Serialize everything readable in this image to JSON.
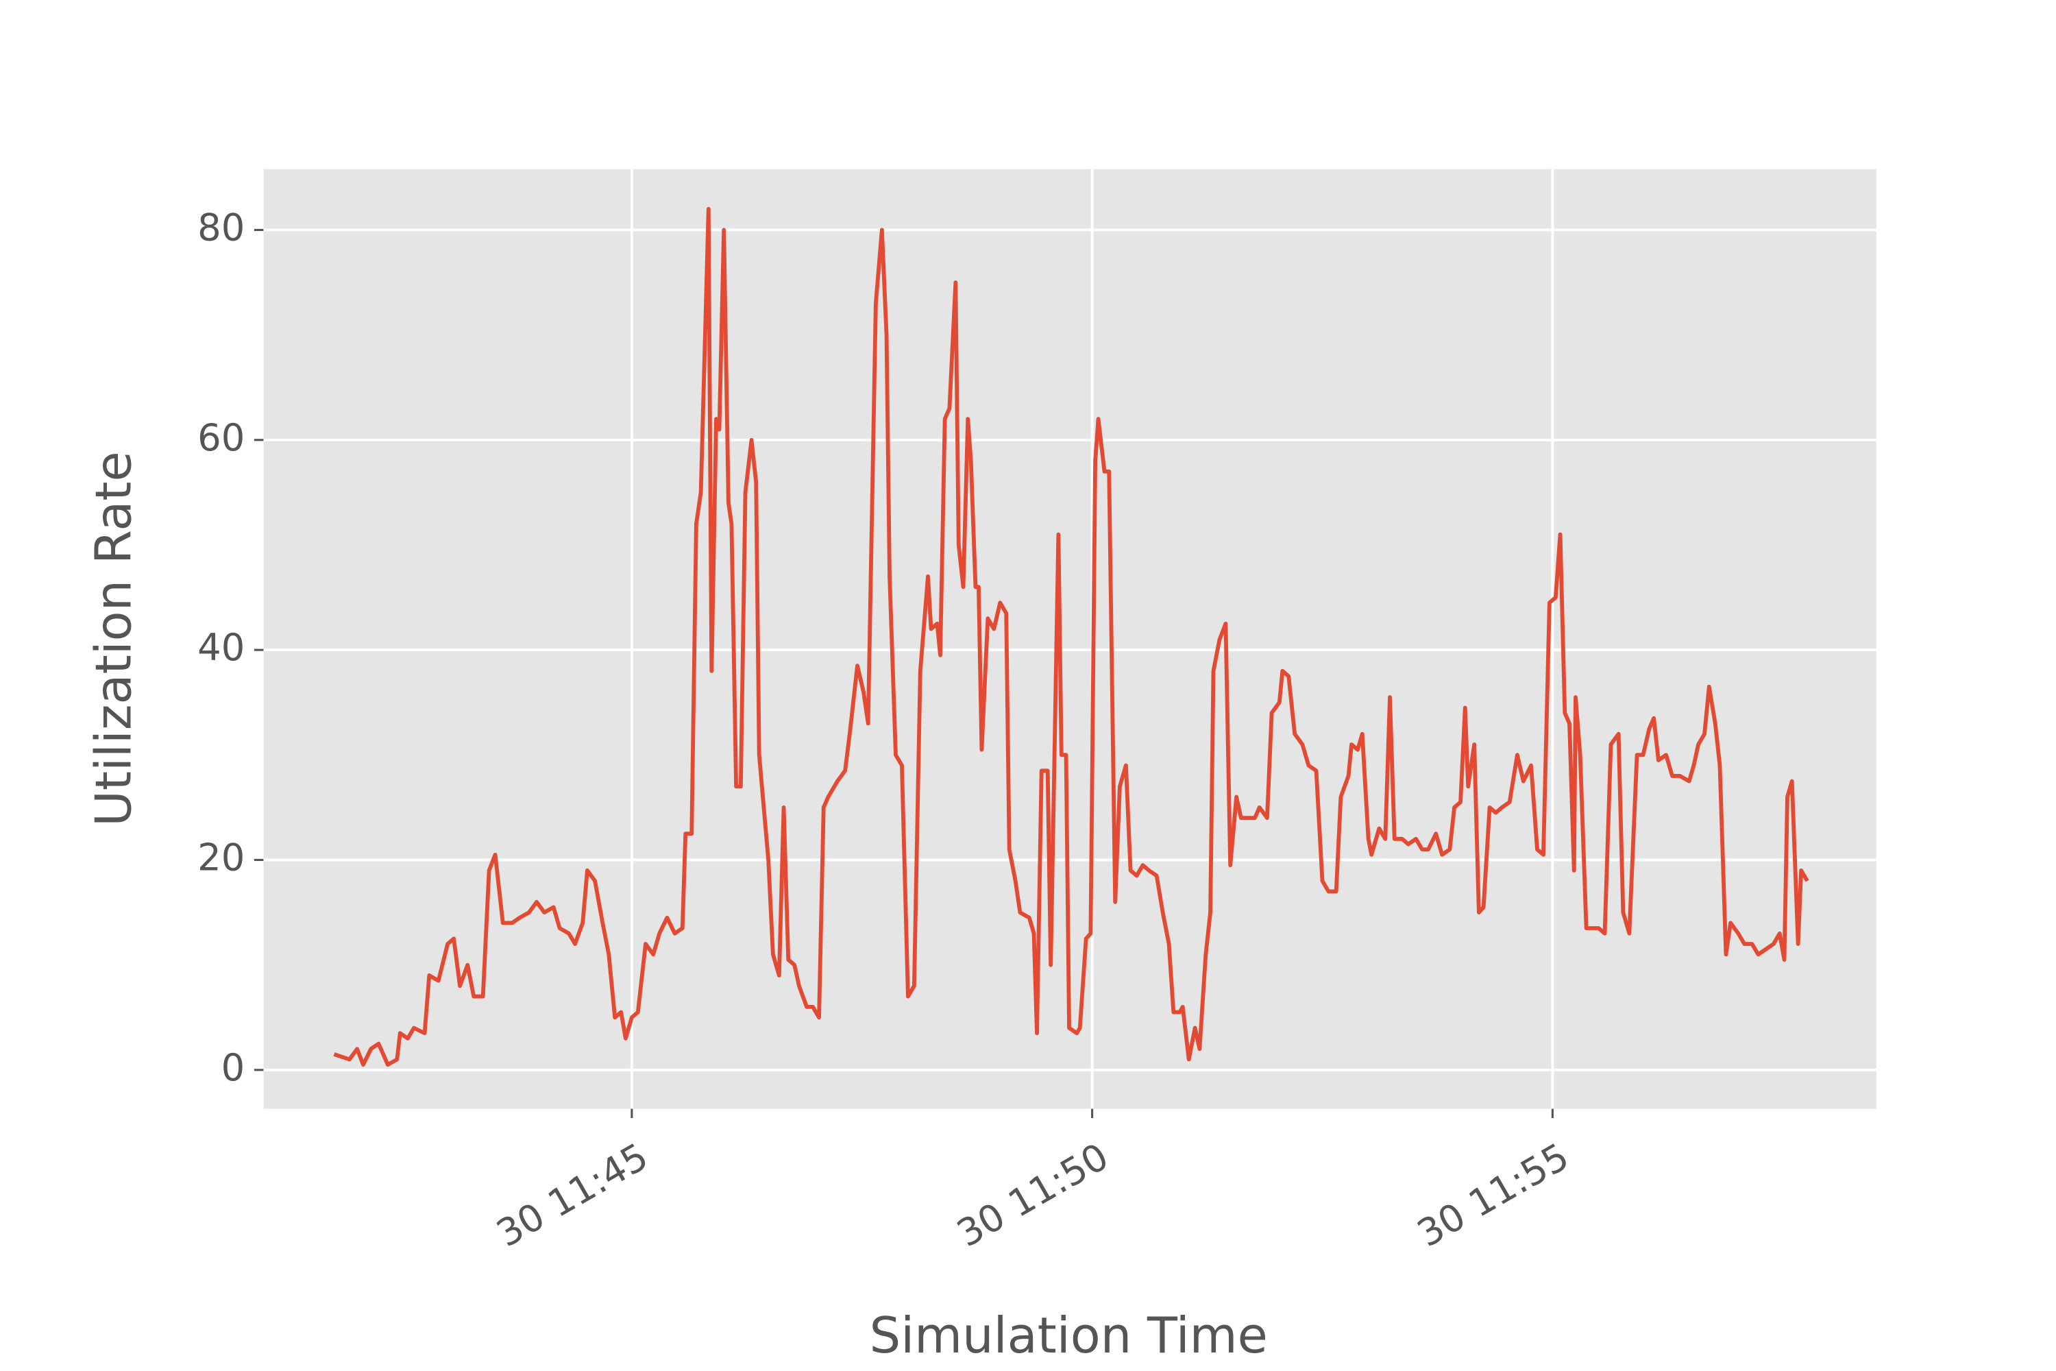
{
  "chart_data": {
    "type": "line",
    "xlabel": "Simulation Time",
    "ylabel": "Utilization Rate",
    "color": "#e24a33",
    "grid": true,
    "xlim": [
      "30 11:41:00",
      "30 11:58:31"
    ],
    "xticks": [
      "30 11:45",
      "30 11:50",
      "30 11:55"
    ],
    "ylim": [
      -3.7,
      85.8
    ],
    "yticks": [
      0,
      20,
      40,
      60,
      80
    ],
    "x": [
      "30 11:41:46",
      "30 11:41:56",
      "30 11:42:01",
      "30 11:42:05",
      "30 11:42:10",
      "30 11:42:15",
      "30 11:42:21",
      "30 11:42:27",
      "30 11:42:29",
      "30 11:42:34",
      "30 11:42:38",
      "30 11:42:45",
      "30 11:42:48",
      "30 11:42:54",
      "30 11:43:00",
      "30 11:43:04",
      "30 11:43:08",
      "30 11:43:13",
      "30 11:43:17",
      "30 11:43:23",
      "30 11:43:27",
      "30 11:43:31",
      "30 11:43:36",
      "30 11:43:42",
      "30 11:43:47",
      "30 11:43:53",
      "30 11:43:58",
      "30 11:44:03",
      "30 11:44:09",
      "30 11:44:13",
      "30 11:44:19",
      "30 11:44:23",
      "30 11:44:28",
      "30 11:44:31",
      "30 11:44:36",
      "30 11:44:41",
      "30 11:44:45",
      "30 11:44:49",
      "30 11:44:53",
      "30 11:44:56",
      "30 11:45:00",
      "30 11:45:04",
      "30 11:45:09",
      "30 11:45:14",
      "30 11:45:18",
      "30 11:45:23",
      "30 11:45:28",
      "30 11:45:33",
      "30 11:45:35",
      "30 11:45:39",
      "30 11:45:42",
      "30 11:45:45",
      "30 11:45:50",
      "30 11:45:52",
      "30 11:45:55",
      "30 11:45:57",
      "30 11:46:00",
      "30 11:46:03",
      "30 11:46:05",
      "30 11:46:08",
      "30 11:46:11",
      "30 11:46:14",
      "30 11:46:18",
      "30 11:46:21",
      "30 11:46:23",
      "30 11:46:26",
      "30 11:46:29",
      "30 11:46:32",
      "30 11:46:36",
      "30 11:46:39",
      "30 11:46:42",
      "30 11:46:46",
      "30 11:46:49",
      "30 11:46:54",
      "30 11:46:58",
      "30 11:47:02",
      "30 11:47:05",
      "30 11:47:08",
      "30 11:47:14",
      "30 11:47:19",
      "30 11:47:22",
      "30 11:47:27",
      "30 11:47:31",
      "30 11:47:34",
      "30 11:47:39",
      "30 11:47:43",
      "30 11:47:46",
      "30 11:47:48",
      "30 11:47:52",
      "30 11:47:56",
      "30 11:48:00",
      "30 11:48:04",
      "30 11:48:08",
      "30 11:48:13",
      "30 11:48:15",
      "30 11:48:19",
      "30 11:48:21",
      "30 11:48:24",
      "30 11:48:27",
      "30 11:48:31",
      "30 11:48:33",
      "30 11:48:36",
      "30 11:48:39",
      "30 11:48:41",
      "30 11:48:44",
      "30 11:48:46",
      "30 11:48:48",
      "30 11:48:52",
      "30 11:48:56",
      "30 11:49:00",
      "30 11:49:04",
      "30 11:49:06",
      "30 11:49:10",
      "30 11:49:13",
      "30 11:49:19",
      "30 11:49:22",
      "30 11:49:24",
      "30 11:49:27",
      "30 11:49:31",
      "30 11:49:33",
      "30 11:49:38",
      "30 11:49:40",
      "30 11:49:43",
      "30 11:49:45",
      "30 11:49:50",
      "30 11:49:52",
      "30 11:49:56",
      "30 11:49:59",
      "30 11:50:02",
      "30 11:50:04",
      "30 11:50:08",
      "30 11:50:11",
      "30 11:50:15",
      "30 11:50:18",
      "30 11:50:22",
      "30 11:50:25",
      "30 11:50:29",
      "30 11:50:33",
      "30 11:50:37",
      "30 11:50:42",
      "30 11:50:46",
      "30 11:50:50",
      "30 11:50:53",
      "30 11:50:57",
      "30 11:50:59",
      "30 11:51:03",
      "30 11:51:07",
      "30 11:51:10",
      "30 11:51:14",
      "30 11:51:17",
      "30 11:51:19",
      "30 11:51:23",
      "30 11:51:27",
      "30 11:51:30",
      "30 11:51:34",
      "30 11:51:37",
      "30 11:51:42",
      "30 11:51:46",
      "30 11:51:49",
      "30 11:51:54",
      "30 11:51:57",
      "30 11:52:02",
      "30 11:52:04",
      "30 11:52:08",
      "30 11:52:12",
      "30 11:52:17",
      "30 11:52:21",
      "30 11:52:26",
      "30 11:52:30",
      "30 11:52:34",
      "30 11:52:39",
      "30 11:52:42",
      "30 11:52:47",
      "30 11:52:49",
      "30 11:52:53",
      "30 11:52:56",
      "30 11:53:00",
      "30 11:53:02",
      "30 11:53:07",
      "30 11:53:11",
      "30 11:53:14",
      "30 11:53:17",
      "30 11:53:22",
      "30 11:53:26",
      "30 11:53:31",
      "30 11:53:35",
      "30 11:53:39",
      "30 11:53:44",
      "30 11:53:48",
      "30 11:53:53",
      "30 11:53:56",
      "30 11:54:00",
      "30 11:54:03",
      "30 11:54:05",
      "30 11:54:09",
      "30 11:54:12",
      "30 11:54:15",
      "30 11:54:19",
      "30 11:54:23",
      "30 11:54:27",
      "30 11:54:32",
      "30 11:54:37",
      "30 11:54:41",
      "30 11:54:46",
      "30 11:54:50",
      "30 11:54:54",
      "30 11:54:58",
      "30 11:55:02",
      "30 11:55:05",
      "30 11:55:08",
      "30 11:55:11",
      "30 11:55:14",
      "30 11:55:15",
      "30 11:55:18",
      "30 11:55:22",
      "30 11:55:26",
      "30 11:55:30",
      "30 11:55:34",
      "30 11:55:38",
      "30 11:55:43",
      "30 11:55:46",
      "30 11:55:50",
      "30 11:55:55",
      "30 11:55:59",
      "30 11:56:03",
      "30 11:56:06",
      "30 11:56:09",
      "30 11:56:14",
      "30 11:56:18",
      "30 11:56:23",
      "30 11:56:29",
      "30 11:56:32",
      "30 11:56:35",
      "30 11:56:39",
      "30 11:56:42",
      "30 11:56:46",
      "30 11:56:49",
      "30 11:56:53",
      "30 11:56:56",
      "30 11:57:01",
      "30 11:57:05",
      "30 11:57:10",
      "30 11:57:14",
      "30 11:57:19",
      "30 11:57:24",
      "30 11:57:28",
      "30 11:57:31",
      "30 11:57:33",
      "30 11:57:36",
      "30 11:57:40",
      "30 11:57:42",
      "30 11:57:46"
    ],
    "values": [
      1.5,
      1,
      2,
      0.5,
      2,
      2.5,
      0.5,
      1,
      3.5,
      3,
      4,
      3.5,
      9,
      8.5,
      12,
      12.5,
      8,
      10,
      7,
      7,
      19,
      20.5,
      14,
      14,
      14.5,
      15,
      16,
      15,
      15.5,
      13.5,
      13,
      12,
      14,
      19,
      18,
      14,
      11,
      5,
      5.5,
      3,
      5,
      5.5,
      12,
      11,
      13,
      14.5,
      13,
      13.5,
      22.5,
      22.5,
      52,
      55,
      82,
      38,
      62,
      61,
      80,
      54,
      52,
      27,
      27,
      55,
      60,
      56,
      30,
      25,
      20,
      11,
      9,
      25,
      10.5,
      10,
      8,
      6,
      6,
      5,
      25,
      26,
      27.5,
      28.5,
      32,
      38.5,
      36,
      33,
      73,
      80,
      70,
      47,
      30,
      29,
      7,
      8,
      38,
      47,
      42,
      42.5,
      39.5,
      62,
      63,
      75,
      50,
      46,
      62,
      58,
      46,
      46,
      30.5,
      43,
      42,
      44.5,
      43.5,
      21,
      18,
      15,
      14.5,
      13,
      3.5,
      28.5,
      28.5,
      10,
      51,
      30,
      30,
      4,
      3.5,
      4,
      12.5,
      13,
      58,
      62,
      57,
      57,
      16,
      27,
      29,
      19,
      18.5,
      19.5,
      19,
      18.5,
      15,
      12,
      5.5,
      5.5,
      6,
      1,
      4,
      2,
      11,
      15,
      38,
      41,
      42.5,
      19.5,
      26,
      24,
      24,
      24,
      25,
      24,
      34,
      35,
      38,
      37.5,
      32,
      31,
      29,
      28.5,
      18,
      17,
      17,
      26,
      28,
      31,
      30.5,
      32,
      22,
      20.5,
      23,
      22,
      35.5,
      22,
      22,
      21.5,
      22,
      21,
      21,
      22.5,
      20.5,
      21,
      25,
      25.5,
      34.5,
      27,
      31,
      15,
      15.5,
      25,
      24.5,
      25,
      25.5,
      30,
      27.5,
      29,
      21,
      20.5,
      44.5,
      45,
      51,
      34,
      33,
      19,
      35.5,
      30,
      13.5,
      13.5,
      13.5,
      13,
      31,
      32,
      15,
      13,
      30,
      30,
      32.5,
      33.5,
      29.5,
      30,
      28,
      28,
      27.5,
      29,
      31,
      32,
      36.5,
      33,
      29,
      11,
      14,
      13,
      12,
      12,
      11,
      11.5,
      12,
      13,
      10.5,
      26,
      27.5,
      12,
      19,
      18
    ]
  }
}
